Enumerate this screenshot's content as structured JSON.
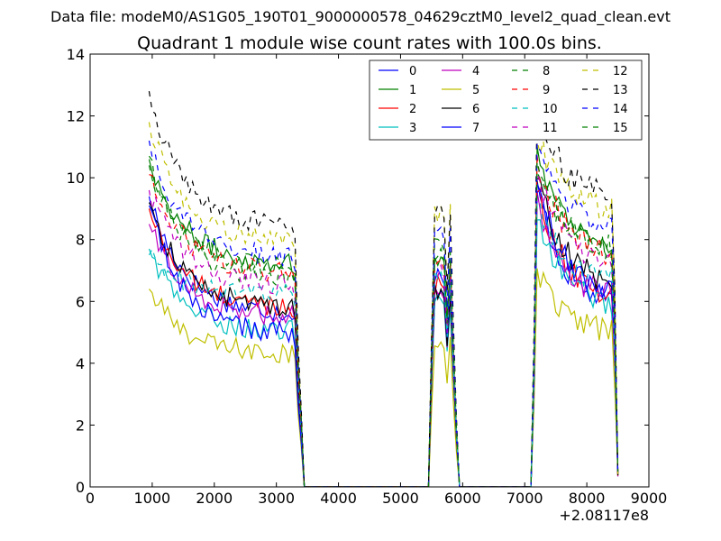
{
  "suptitle": "Data file: modeM0/AS1G05_190T01_9000000578_04629cztM0_level2_quad_clean.evt",
  "chart_data": {
    "type": "line",
    "title": "Quadrant 1 module wise count rates with 100.0s bins.",
    "xlabel": "",
    "ylabel": "",
    "x_offset_label": "+2.08117e8",
    "xlim": [
      0,
      9000
    ],
    "ylim": [
      0,
      14
    ],
    "xticks": [
      0,
      1000,
      2000,
      3000,
      4000,
      5000,
      6000,
      7000,
      8000,
      9000
    ],
    "yticks": [
      0,
      2,
      4,
      6,
      8,
      10,
      12,
      14
    ],
    "grid": false,
    "legend_position": "top-right",
    "legend_columns": 4,
    "segments": [
      {
        "x_start": 950,
        "x_end": 3450,
        "step": 50
      },
      {
        "x_start": 5450,
        "x_end": 6050,
        "step": 50
      },
      {
        "x_start": 7100,
        "x_end": 8500,
        "step": 50
      }
    ],
    "gaps": [
      {
        "x_start": 3450,
        "x_end": 5450
      },
      {
        "x_start": 6050,
        "x_end": 7100
      }
    ],
    "series": [
      {
        "name": "0",
        "color": "#0000ff",
        "dash": "solid",
        "seg1_start": 9.4,
        "seg1_plateau": 5.6,
        "seg2_plateau": 6.3,
        "seg3_peak": 9.8,
        "seg3_end": 5.7
      },
      {
        "name": "1",
        "color": "#008000",
        "dash": "solid",
        "seg1_start": 10.6,
        "seg1_plateau": 7.2,
        "seg2_plateau": 7.4,
        "seg3_peak": 11.0,
        "seg3_end": 7.7
      },
      {
        "name": "2",
        "color": "#ff0000",
        "dash": "solid",
        "seg1_start": 9.0,
        "seg1_plateau": 5.8,
        "seg2_plateau": 6.5,
        "seg3_peak": 9.6,
        "seg3_end": 6.1
      },
      {
        "name": "3",
        "color": "#00bfbf",
        "dash": "solid",
        "seg1_start": 7.7,
        "seg1_plateau": 5.0,
        "seg2_plateau": 6.0,
        "seg3_peak": 8.8,
        "seg3_end": 5.8
      },
      {
        "name": "4",
        "color": "#bf00bf",
        "dash": "solid",
        "seg1_start": 8.5,
        "seg1_plateau": 5.5,
        "seg2_plateau": 6.2,
        "seg3_peak": 9.4,
        "seg3_end": 6.0
      },
      {
        "name": "5",
        "color": "#bfbf00",
        "dash": "solid",
        "seg1_start": 6.4,
        "seg1_plateau": 4.3,
        "seg2_plateau": 4.6,
        "seg3_peak": 7.0,
        "seg3_end": 4.9
      },
      {
        "name": "6",
        "color": "#000000",
        "dash": "solid",
        "seg1_start": 9.2,
        "seg1_plateau": 5.8,
        "seg2_plateau": 6.3,
        "seg3_peak": 10.0,
        "seg3_end": 6.4
      },
      {
        "name": "7",
        "color": "#0000ff",
        "dash": "solid",
        "seg1_start": 9.1,
        "seg1_plateau": 4.9,
        "seg2_plateau": 6.7,
        "seg3_peak": 9.9,
        "seg3_end": 6.2
      },
      {
        "name": "8",
        "color": "#008000",
        "dash": "dashed",
        "seg1_start": 10.7,
        "seg1_plateau": 6.7,
        "seg2_plateau": 7.8,
        "seg3_peak": 10.4,
        "seg3_end": 7.6
      },
      {
        "name": "9",
        "color": "#ff0000",
        "dash": "dashed",
        "seg1_start": 10.1,
        "seg1_plateau": 6.9,
        "seg2_plateau": 7.2,
        "seg3_peak": 10.6,
        "seg3_end": 7.4
      },
      {
        "name": "10",
        "color": "#00bfbf",
        "dash": "dashed",
        "seg1_start": 7.5,
        "seg1_plateau": 6.2,
        "seg2_plateau": 6.8,
        "seg3_peak": 9.2,
        "seg3_end": 6.5
      },
      {
        "name": "11",
        "color": "#bf00bf",
        "dash": "dashed",
        "seg1_start": 9.6,
        "seg1_plateau": 6.5,
        "seg2_plateau": 7.0,
        "seg3_peak": 10.2,
        "seg3_end": 7.0
      },
      {
        "name": "12",
        "color": "#bfbf00",
        "dash": "dashed",
        "seg1_start": 11.8,
        "seg1_plateau": 7.9,
        "seg2_plateau": 8.9,
        "seg3_peak": 11.3,
        "seg3_end": 8.9
      },
      {
        "name": "13",
        "color": "#000000",
        "dash": "dashed",
        "seg1_start": 12.8,
        "seg1_plateau": 8.4,
        "seg2_plateau": 8.9,
        "seg3_peak": 12.3,
        "seg3_end": 9.2
      },
      {
        "name": "14",
        "color": "#0000ff",
        "dash": "dashed",
        "seg1_start": 11.2,
        "seg1_plateau": 7.4,
        "seg2_plateau": 8.2,
        "seg3_peak": 11.0,
        "seg3_end": 8.4
      },
      {
        "name": "15",
        "color": "#008000",
        "dash": "dashed",
        "seg1_start": 10.4,
        "seg1_plateau": 7.1,
        "seg2_plateau": 7.5,
        "seg3_peak": 10.5,
        "seg3_end": 7.6
      }
    ]
  }
}
